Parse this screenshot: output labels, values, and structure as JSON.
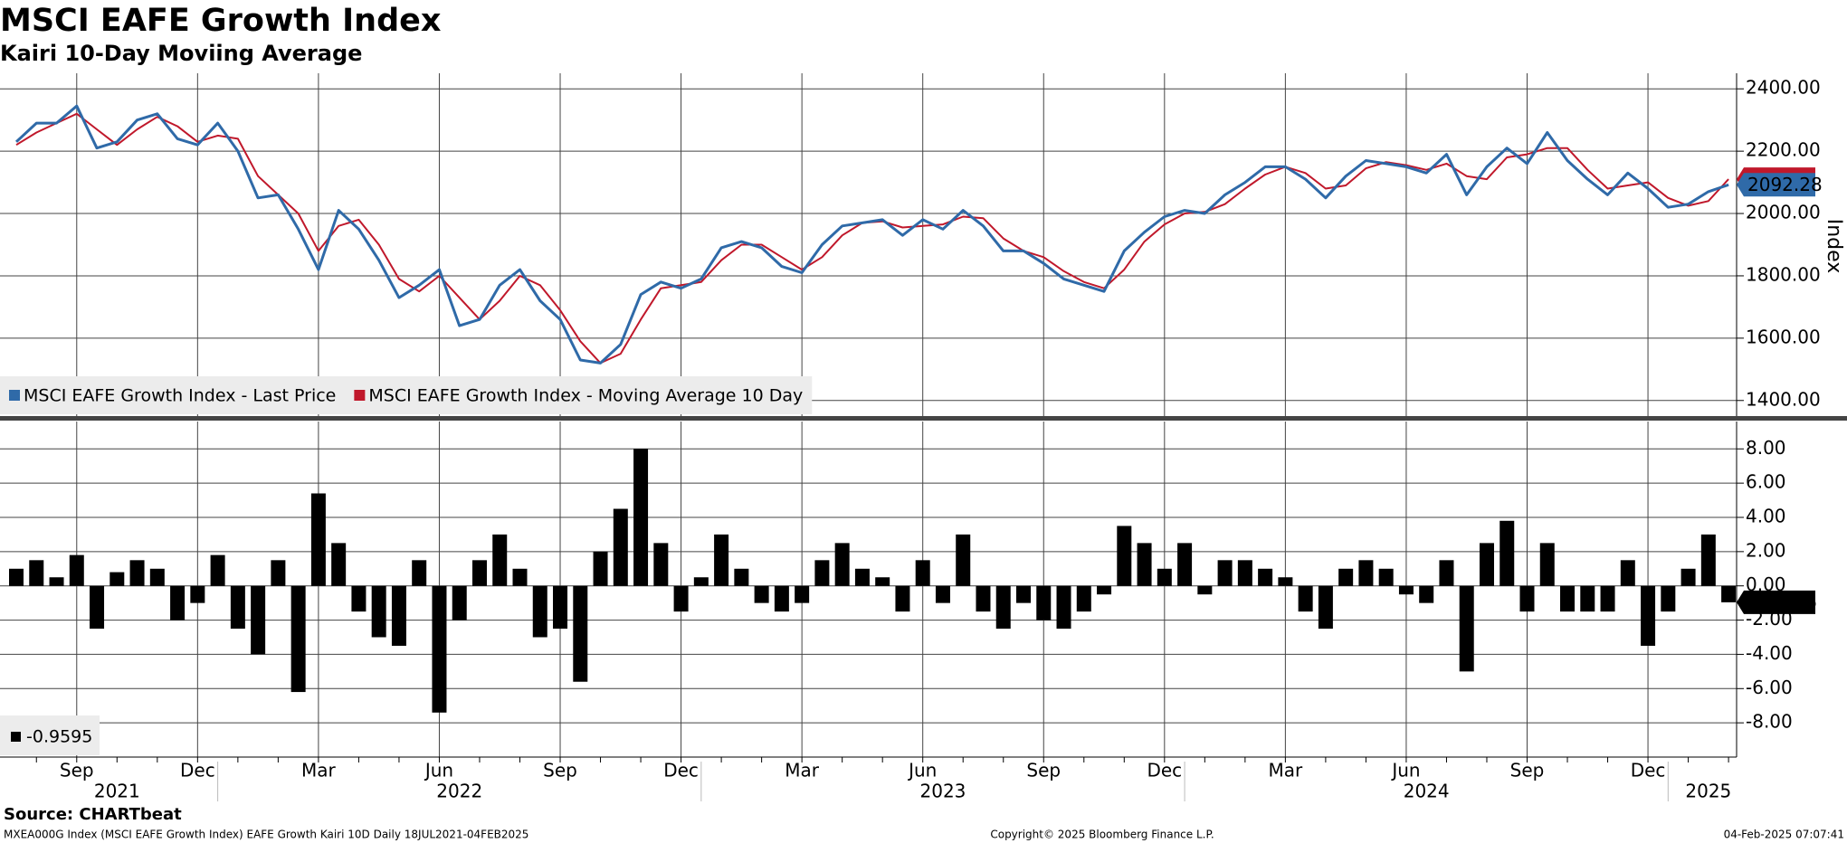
{
  "chart_data": [
    {
      "type": "line",
      "title": "MSCI EAFE Growth Index",
      "subtitle": "Kairi 10-Day Moviing Average",
      "ylabel": "Index",
      "ylim": [
        1350,
        2450
      ],
      "yticks": [
        {
          "value": 1400,
          "label": "1400.00"
        },
        {
          "value": 1600,
          "label": "1600.00"
        },
        {
          "value": 1800,
          "label": "1800.00"
        },
        {
          "value": 2000,
          "label": "2000.00"
        },
        {
          "value": 2200,
          "label": "2200.00"
        },
        {
          "value": 2400,
          "label": "2400.00"
        }
      ],
      "grid": true,
      "legend": "lower left",
      "series": [
        {
          "name": "MSCI EAFE Growth Index - Last Price",
          "color": "#2f6aa8",
          "values": [
            2230,
            2290,
            2290,
            2345,
            2210,
            2230,
            2300,
            2320,
            2240,
            2220,
            2290,
            2200,
            2050,
            2060,
            1950,
            1820,
            2010,
            1950,
            1850,
            1730,
            1770,
            1820,
            1640,
            1660,
            1770,
            1820,
            1720,
            1660,
            1530,
            1520,
            1580,
            1740,
            1780,
            1760,
            1790,
            1890,
            1910,
            1890,
            1830,
            1810,
            1900,
            1960,
            1970,
            1980,
            1930,
            1980,
            1950,
            2010,
            1960,
            1880,
            1880,
            1840,
            1790,
            1770,
            1750,
            1880,
            1940,
            1990,
            2010,
            2000,
            2060,
            2100,
            2150,
            2150,
            2110,
            2050,
            2120,
            2170,
            2160,
            2150,
            2130,
            2190,
            2060,
            2150,
            2210,
            2160,
            2260,
            2170,
            2110,
            2060,
            2130,
            2080,
            2020,
            2030,
            2070,
            2092.28
          ]
        },
        {
          "name": "MSCI EAFE Growth Index - Moving Average 10 Day",
          "color": "#c0182b",
          "values": [
            2220,
            2260,
            2290,
            2320,
            2270,
            2220,
            2270,
            2310,
            2280,
            2230,
            2250,
            2240,
            2120,
            2060,
            2000,
            1880,
            1960,
            1980,
            1900,
            1790,
            1750,
            1800,
            1730,
            1660,
            1720,
            1800,
            1770,
            1690,
            1590,
            1520,
            1550,
            1660,
            1760,
            1770,
            1780,
            1850,
            1900,
            1900,
            1860,
            1820,
            1860,
            1930,
            1970,
            1975,
            1955,
            1960,
            1965,
            1990,
            1985,
            1920,
            1880,
            1860,
            1815,
            1780,
            1760,
            1820,
            1910,
            1965,
            2000,
            2005,
            2030,
            2080,
            2125,
            2150,
            2130,
            2080,
            2090,
            2145,
            2165,
            2155,
            2140,
            2160,
            2120,
            2110,
            2180,
            2190,
            2210,
            2210,
            2140,
            2080,
            2090,
            2100,
            2050,
            2025,
            2040,
            2110
          ]
        }
      ]
    },
    {
      "type": "bar",
      "categories": [
        null,
        null,
        null,
        "Sep",
        null,
        null,
        null,
        null,
        null,
        "Dec",
        null,
        null,
        null,
        null,
        null,
        "Mar",
        null,
        null,
        null,
        null,
        null,
        "Jun",
        null,
        null,
        null,
        null,
        null,
        "Sep",
        null,
        null,
        null,
        null,
        null,
        "Dec",
        null,
        null,
        null,
        null,
        null,
        "Mar",
        null,
        null,
        null,
        null,
        null,
        "Jun",
        null,
        null,
        null,
        null,
        null,
        "Sep",
        null,
        null,
        null,
        null,
        null,
        "Dec",
        null,
        null,
        null,
        null,
        null,
        "Mar",
        null,
        null,
        null,
        null,
        null,
        "Jun",
        null,
        null,
        null,
        null,
        null,
        "Sep",
        null,
        null,
        null,
        null,
        null,
        "Dec",
        null,
        null,
        null,
        null
      ],
      "category_groups": [
        null,
        null,
        null,
        null,
        null,
        "2021",
        null,
        null,
        null,
        null,
        null,
        null,
        null,
        null,
        null,
        null,
        null,
        null,
        null,
        null,
        null,
        null,
        "2022",
        null,
        null,
        null,
        null,
        null,
        null,
        null,
        null,
        null,
        null,
        null,
        null,
        null,
        null,
        null,
        null,
        null,
        null,
        null,
        null,
        null,
        null,
        null,
        "2023",
        null,
        null,
        null,
        null,
        null,
        null,
        null,
        null,
        null,
        null,
        null,
        null,
        null,
        null,
        null,
        null,
        null,
        null,
        null,
        null,
        null,
        null,
        null,
        "2024",
        null,
        null,
        null,
        null,
        null,
        null,
        null,
        null,
        null,
        null,
        null,
        null,
        null,
        "2025",
        null
      ],
      "ylim": [
        -10,
        9.6
      ],
      "yticks": [
        {
          "value": -8,
          "label": "-8.00"
        },
        {
          "value": -6,
          "label": "-6.00"
        },
        {
          "value": -4,
          "label": "-4.00"
        },
        {
          "value": -2,
          "label": "-2.00"
        },
        {
          "value": 0,
          "label": "0.00"
        },
        {
          "value": 2,
          "label": "2.00"
        },
        {
          "value": 4,
          "label": "4.00"
        },
        {
          "value": 6,
          "label": "6.00"
        },
        {
          "value": 8,
          "label": "8.00"
        }
      ],
      "grid": true,
      "legend": "lower left",
      "series": [
        {
          "color": "#000000",
          "values": [
            1.0,
            1.5,
            0.5,
            1.8,
            -2.5,
            0.8,
            1.5,
            1.0,
            -2.0,
            -1.0,
            1.8,
            -2.5,
            -4.0,
            1.5,
            -6.2,
            5.4,
            2.5,
            -1.5,
            -3.0,
            -3.5,
            1.5,
            -7.4,
            -2.0,
            1.5,
            3.0,
            1.0,
            -3.0,
            -2.5,
            -5.6,
            2.0,
            4.5,
            8.0,
            2.5,
            -1.5,
            0.5,
            3.0,
            1.0,
            -1.0,
            -1.5,
            -1.0,
            1.5,
            2.5,
            1.0,
            0.5,
            -1.5,
            1.5,
            -1.0,
            3.0,
            -1.5,
            -2.5,
            -1.0,
            -2.0,
            -2.5,
            -1.5,
            -0.5,
            3.5,
            2.5,
            1.0,
            2.5,
            -0.5,
            1.5,
            1.5,
            1.0,
            0.5,
            -1.5,
            -2.5,
            1.0,
            1.5,
            1.0,
            -0.5,
            -1.0,
            1.5,
            -5.0,
            2.5,
            3.8,
            -1.5,
            2.5,
            -1.5,
            -1.5,
            -1.5,
            1.5,
            -3.5,
            -1.5,
            1.0,
            3.0,
            -0.9595
          ]
        }
      ]
    }
  ],
  "footer": {
    "source": "Source: CHARTbeat",
    "description": "MXEA000G Index (MSCI EAFE Growth Index) EAFE Growth Kairi 10D  Daily 18JUL2021-04FEB2025",
    "copyright": "Copyright© 2025 Bloomberg Finance L.P.",
    "timestamp": "04-Feb-2025 07:07:41"
  }
}
